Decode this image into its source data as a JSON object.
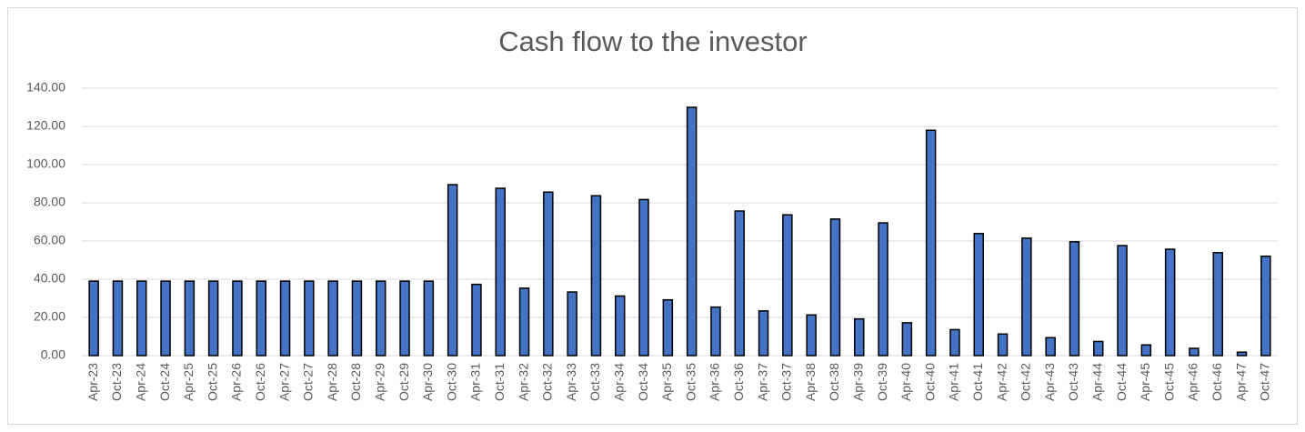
{
  "chart_data": {
    "type": "bar",
    "title": "Cash flow to the investor",
    "categories": [
      "Apr-23",
      "Oct-23",
      "Apr-24",
      "Oct-24",
      "Apr-25",
      "Oct-25",
      "Apr-26",
      "Oct-26",
      "Apr-27",
      "Oct-27",
      "Apr-28",
      "Oct-28",
      "Apr-29",
      "Oct-29",
      "Apr-30",
      "Oct-30",
      "Apr-31",
      "Oct-31",
      "Apr-32",
      "Oct-32",
      "Apr-33",
      "Oct-33",
      "Apr-34",
      "Oct-34",
      "Apr-35",
      "Oct-35",
      "Apr-36",
      "Oct-36",
      "Apr-37",
      "Oct-37",
      "Apr-38",
      "Oct-38",
      "Apr-39",
      "Oct-39",
      "Apr-40",
      "Oct-40",
      "Apr-41",
      "Oct-41",
      "Apr-42",
      "Oct-42",
      "Apr-43",
      "Oct-43",
      "Apr-44",
      "Oct-44",
      "Apr-45",
      "Oct-45",
      "Apr-46",
      "Oct-46",
      "Apr-47",
      "Oct-47"
    ],
    "values": [
      39,
      39,
      39,
      39,
      39,
      39,
      39,
      39,
      39,
      39,
      39,
      39,
      39,
      39,
      39,
      89.5,
      37.3,
      87.6,
      35.3,
      85.6,
      33.3,
      83.7,
      31.2,
      81.7,
      29.2,
      130,
      25.4,
      75.7,
      23.4,
      73.7,
      21.3,
      71.5,
      19.2,
      69.5,
      17.2,
      118,
      13.6,
      63.9,
      11.3,
      61.5,
      9.4,
      59.6,
      7.4,
      57.6,
      5.6,
      55.7,
      3.8,
      53.9,
      1.8,
      52
    ],
    "color": "#4472c4",
    "ylim": [
      0,
      140
    ],
    "yticks": [
      {
        "value": 0,
        "label": "0.00"
      },
      {
        "value": 20,
        "label": "20.00"
      },
      {
        "value": 40,
        "label": "40.00"
      },
      {
        "value": 60,
        "label": "60.00"
      },
      {
        "value": 80,
        "label": "80.00"
      },
      {
        "value": 100,
        "label": "100.00"
      },
      {
        "value": 120,
        "label": "120.00"
      },
      {
        "value": 140,
        "label": "140.00"
      }
    ],
    "grid": true
  }
}
